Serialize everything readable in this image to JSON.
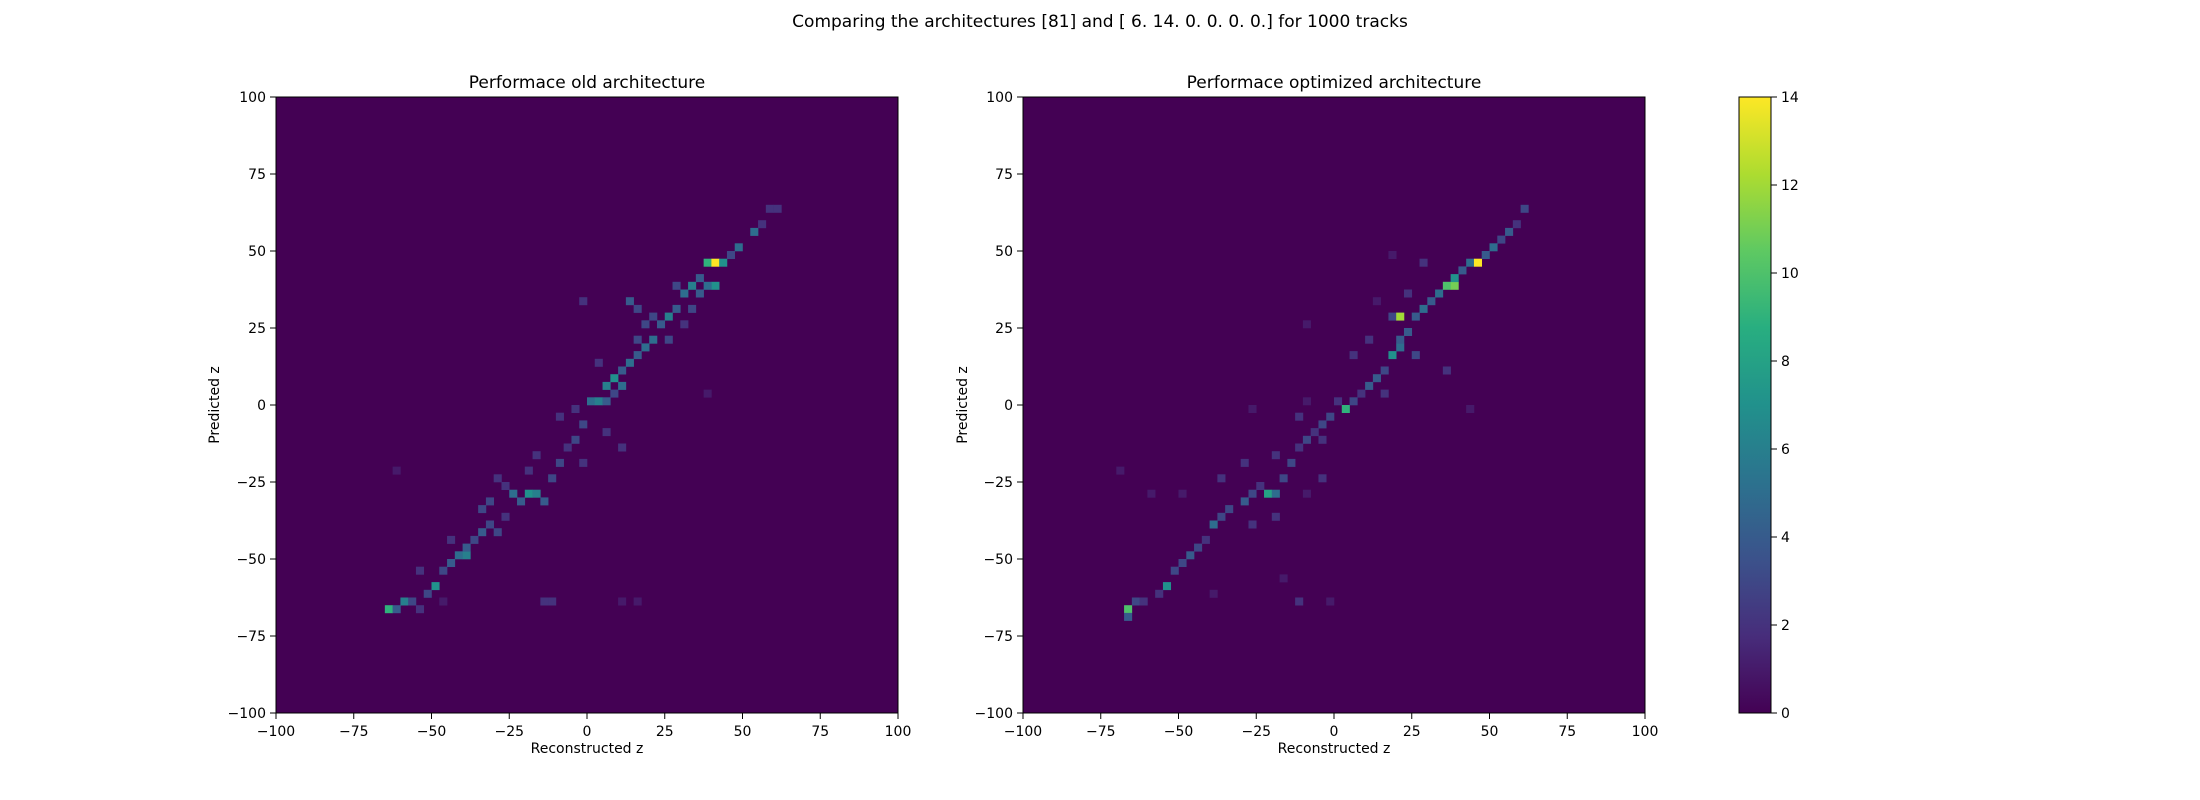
{
  "figure": {
    "suptitle": "Comparing the architectures [81] and [ 6. 14.  0.  0.  0.  0.] for 1000 tracks"
  },
  "chart_data": [
    {
      "type": "heatmap",
      "title": "Performace old architecture",
      "xlabel": "Reconstructed z",
      "ylabel": "Predicted z",
      "xlim": [
        -100,
        100
      ],
      "ylim": [
        -100,
        100
      ],
      "bin_width": 2.5,
      "xticks": [
        -100,
        -75,
        -50,
        -25,
        0,
        25,
        50,
        75,
        100
      ],
      "yticks": [
        -100,
        -75,
        -50,
        -25,
        0,
        25,
        50,
        75,
        100
      ],
      "xtick_labels": [
        "−100",
        "−75",
        "−50",
        "−25",
        "0",
        "25",
        "50",
        "75",
        "100"
      ],
      "ytick_labels": [
        "−100",
        "−75",
        "−50",
        "−25",
        "0",
        "25",
        "50",
        "75",
        "100"
      ],
      "grid": false,
      "cells": [
        {
          "x": -65,
          "y": -67.5,
          "count": 9
        },
        {
          "x": -62.5,
          "y": -67.5,
          "count": 4
        },
        {
          "x": -60,
          "y": -65,
          "count": 6
        },
        {
          "x": -57.5,
          "y": -65,
          "count": 3
        },
        {
          "x": -55,
          "y": -67.5,
          "count": 2
        },
        {
          "x": -50,
          "y": -60,
          "count": 7
        },
        {
          "x": -52.5,
          "y": -62.5,
          "count": 3
        },
        {
          "x": -47.5,
          "y": -55,
          "count": 3
        },
        {
          "x": -45,
          "y": -52.5,
          "count": 4
        },
        {
          "x": -42.5,
          "y": -50,
          "count": 5
        },
        {
          "x": -40,
          "y": -50,
          "count": 6
        },
        {
          "x": -40,
          "y": -47.5,
          "count": 4
        },
        {
          "x": -37.5,
          "y": -45,
          "count": 3
        },
        {
          "x": -35,
          "y": -42.5,
          "count": 4
        },
        {
          "x": -32.5,
          "y": -40,
          "count": 3
        },
        {
          "x": -30,
          "y": -42.5,
          "count": 3
        },
        {
          "x": -27.5,
          "y": -37.5,
          "count": 2
        },
        {
          "x": -25,
          "y": -30,
          "count": 5
        },
        {
          "x": -22.5,
          "y": -32.5,
          "count": 4
        },
        {
          "x": -20,
          "y": -30,
          "count": 7
        },
        {
          "x": -17.5,
          "y": -30,
          "count": 6
        },
        {
          "x": -15,
          "y": -32.5,
          "count": 4
        },
        {
          "x": -32.5,
          "y": -32.5,
          "count": 3
        },
        {
          "x": -35,
          "y": -35,
          "count": 3
        },
        {
          "x": -27.5,
          "y": -27.5,
          "count": 2
        },
        {
          "x": -12.5,
          "y": -25,
          "count": 3
        },
        {
          "x": -10,
          "y": -20,
          "count": 3
        },
        {
          "x": -7.5,
          "y": -15,
          "count": 2
        },
        {
          "x": -5,
          "y": -12.5,
          "count": 3
        },
        {
          "x": -2.5,
          "y": -7.5,
          "count": 3
        },
        {
          "x": -5,
          "y": -2.5,
          "count": 2
        },
        {
          "x": 0,
          "y": 0,
          "count": 5
        },
        {
          "x": 2.5,
          "y": 0,
          "count": 6
        },
        {
          "x": 5,
          "y": 0,
          "count": 4
        },
        {
          "x": 7.5,
          "y": 2.5,
          "count": 3
        },
        {
          "x": 5,
          "y": 5,
          "count": 6
        },
        {
          "x": 7.5,
          "y": 7.5,
          "count": 7
        },
        {
          "x": 10,
          "y": 5,
          "count": 5
        },
        {
          "x": 10,
          "y": 10,
          "count": 4
        },
        {
          "x": 12.5,
          "y": 12.5,
          "count": 5
        },
        {
          "x": 15,
          "y": 15,
          "count": 4
        },
        {
          "x": 17.5,
          "y": 17.5,
          "count": 5
        },
        {
          "x": 15,
          "y": 20,
          "count": 3
        },
        {
          "x": 20,
          "y": 20,
          "count": 5
        },
        {
          "x": 22.5,
          "y": 25,
          "count": 4
        },
        {
          "x": 20,
          "y": 27.5,
          "count": 3
        },
        {
          "x": 25,
          "y": 27.5,
          "count": 6
        },
        {
          "x": 27.5,
          "y": 30,
          "count": 4
        },
        {
          "x": 12.5,
          "y": 32.5,
          "count": 4
        },
        {
          "x": 15,
          "y": 30,
          "count": 3
        },
        {
          "x": 30,
          "y": 35,
          "count": 5
        },
        {
          "x": 32.5,
          "y": 37.5,
          "count": 6
        },
        {
          "x": 35,
          "y": 40,
          "count": 4
        },
        {
          "x": 37.5,
          "y": 45,
          "count": 9
        },
        {
          "x": 40,
          "y": 45,
          "count": 14
        },
        {
          "x": 42.5,
          "y": 45,
          "count": 7
        },
        {
          "x": 45,
          "y": 47.5,
          "count": 3
        },
        {
          "x": 40,
          "y": 37.5,
          "count": 7
        },
        {
          "x": 37.5,
          "y": 37.5,
          "count": 5
        },
        {
          "x": 47.5,
          "y": 50,
          "count": 5
        },
        {
          "x": 52.5,
          "y": 55,
          "count": 5
        },
        {
          "x": 55,
          "y": 57.5,
          "count": 2
        },
        {
          "x": 57.5,
          "y": 62.5,
          "count": 2
        },
        {
          "x": 60,
          "y": 62.5,
          "count": 2
        },
        {
          "x": -15,
          "y": -65,
          "count": 2
        },
        {
          "x": -12.5,
          "y": -65,
          "count": 2
        },
        {
          "x": 10,
          "y": -65,
          "count": 1
        },
        {
          "x": 15,
          "y": -65,
          "count": 1
        },
        {
          "x": 37.5,
          "y": 2.5,
          "count": 1
        },
        {
          "x": -62.5,
          "y": -22.5,
          "count": 1
        },
        {
          "x": -2.5,
          "y": 32.5,
          "count": 2
        },
        {
          "x": 25,
          "y": 20,
          "count": 3
        },
        {
          "x": 30,
          "y": 25,
          "count": 2
        },
        {
          "x": 32.5,
          "y": 30,
          "count": 3
        },
        {
          "x": -17.5,
          "y": -17.5,
          "count": 2
        },
        {
          "x": -20,
          "y": -22.5,
          "count": 2
        },
        {
          "x": -30,
          "y": -25,
          "count": 2
        },
        {
          "x": -10,
          "y": -5,
          "count": 2
        },
        {
          "x": 2.5,
          "y": 12.5,
          "count": 2
        },
        {
          "x": 17.5,
          "y": 25,
          "count": 3
        },
        {
          "x": 35,
          "y": 35,
          "count": 4
        },
        {
          "x": 27.5,
          "y": 37.5,
          "count": 3
        },
        {
          "x": -45,
          "y": -45,
          "count": 2
        },
        {
          "x": -55,
          "y": -55,
          "count": 2
        },
        {
          "x": -47.5,
          "y": -65,
          "count": 1
        },
        {
          "x": 10,
          "y": -15,
          "count": 2
        },
        {
          "x": 5,
          "y": -10,
          "count": 2
        },
        {
          "x": -2.5,
          "y": -20,
          "count": 2
        }
      ]
    },
    {
      "type": "heatmap",
      "title": "Performace optimized architecture",
      "xlabel": "Reconstructed z",
      "ylabel": "Predicted z",
      "xlim": [
        -100,
        100
      ],
      "ylim": [
        -100,
        100
      ],
      "bin_width": 2.5,
      "xticks": [
        -100,
        -75,
        -50,
        -25,
        0,
        25,
        50,
        75,
        100
      ],
      "yticks": [
        -100,
        -75,
        -50,
        -25,
        0,
        25,
        50,
        75,
        100
      ],
      "xtick_labels": [
        "−100",
        "−75",
        "−50",
        "−25",
        "0",
        "25",
        "50",
        "75",
        "100"
      ],
      "ytick_labels": [
        "−100",
        "−75",
        "−50",
        "−25",
        "0",
        "25",
        "50",
        "75",
        "100"
      ],
      "grid": false,
      "cells": [
        {
          "x": -67.5,
          "y": -67.5,
          "count": 10
        },
        {
          "x": -67.5,
          "y": -70,
          "count": 4
        },
        {
          "x": -65,
          "y": -65,
          "count": 3
        },
        {
          "x": -62.5,
          "y": -65,
          "count": 2
        },
        {
          "x": -55,
          "y": -60,
          "count": 7
        },
        {
          "x": -57.5,
          "y": -62.5,
          "count": 2
        },
        {
          "x": -52.5,
          "y": -55,
          "count": 3
        },
        {
          "x": -50,
          "y": -52.5,
          "count": 3
        },
        {
          "x": -47.5,
          "y": -50,
          "count": 4
        },
        {
          "x": -45,
          "y": -47.5,
          "count": 3
        },
        {
          "x": -42.5,
          "y": -45,
          "count": 2
        },
        {
          "x": -40,
          "y": -40,
          "count": 5
        },
        {
          "x": -37.5,
          "y": -37.5,
          "count": 3
        },
        {
          "x": -35,
          "y": -35,
          "count": 3
        },
        {
          "x": -30,
          "y": -32.5,
          "count": 4
        },
        {
          "x": -27.5,
          "y": -30,
          "count": 3
        },
        {
          "x": -25,
          "y": -27.5,
          "count": 2
        },
        {
          "x": -22.5,
          "y": -30,
          "count": 8
        },
        {
          "x": -20,
          "y": -30,
          "count": 5
        },
        {
          "x": -17.5,
          "y": -25,
          "count": 3
        },
        {
          "x": -15,
          "y": -20,
          "count": 3
        },
        {
          "x": -12.5,
          "y": -15,
          "count": 2
        },
        {
          "x": -10,
          "y": -12.5,
          "count": 3
        },
        {
          "x": -7.5,
          "y": -10,
          "count": 2
        },
        {
          "x": -5,
          "y": -7.5,
          "count": 3
        },
        {
          "x": -2.5,
          "y": -5,
          "count": 3
        },
        {
          "x": 0,
          "y": 0,
          "count": 2
        },
        {
          "x": 2.5,
          "y": -2.5,
          "count": 9
        },
        {
          "x": 5,
          "y": 0,
          "count": 3
        },
        {
          "x": 7.5,
          "y": 2.5,
          "count": 2
        },
        {
          "x": 10,
          "y": 5,
          "count": 4
        },
        {
          "x": 12.5,
          "y": 7.5,
          "count": 4
        },
        {
          "x": 15,
          "y": 10,
          "count": 3
        },
        {
          "x": 17.5,
          "y": 15,
          "count": 7
        },
        {
          "x": 20,
          "y": 17.5,
          "count": 5
        },
        {
          "x": 20,
          "y": 20,
          "count": 4
        },
        {
          "x": 22.5,
          "y": 22.5,
          "count": 4
        },
        {
          "x": 17.5,
          "y": 27.5,
          "count": 3
        },
        {
          "x": 20,
          "y": 27.5,
          "count": 12
        },
        {
          "x": 25,
          "y": 27.5,
          "count": 4
        },
        {
          "x": 27.5,
          "y": 30,
          "count": 5
        },
        {
          "x": 30,
          "y": 32.5,
          "count": 4
        },
        {
          "x": 32.5,
          "y": 35,
          "count": 5
        },
        {
          "x": 35,
          "y": 37.5,
          "count": 10
        },
        {
          "x": 37.5,
          "y": 37.5,
          "count": 11
        },
        {
          "x": 37.5,
          "y": 40,
          "count": 7
        },
        {
          "x": 40,
          "y": 42.5,
          "count": 4
        },
        {
          "x": 42.5,
          "y": 45,
          "count": 5
        },
        {
          "x": 45,
          "y": 45,
          "count": 14
        },
        {
          "x": 47.5,
          "y": 47.5,
          "count": 4
        },
        {
          "x": 50,
          "y": 50,
          "count": 5
        },
        {
          "x": 52.5,
          "y": 52.5,
          "count": 3
        },
        {
          "x": 55,
          "y": 55,
          "count": 4
        },
        {
          "x": 57.5,
          "y": 57.5,
          "count": 2
        },
        {
          "x": 60,
          "y": 62.5,
          "count": 3
        },
        {
          "x": -37.5,
          "y": -25,
          "count": 2
        },
        {
          "x": -30,
          "y": -20,
          "count": 2
        },
        {
          "x": -27.5,
          "y": -40,
          "count": 2
        },
        {
          "x": -20,
          "y": -37.5,
          "count": 2
        },
        {
          "x": -10,
          "y": -30,
          "count": 1
        },
        {
          "x": -5,
          "y": -25,
          "count": 2
        },
        {
          "x": -12.5,
          "y": -5,
          "count": 2
        },
        {
          "x": -10,
          "y": 0,
          "count": 1
        },
        {
          "x": -27.5,
          "y": -2.5,
          "count": 1
        },
        {
          "x": -10,
          "y": 25,
          "count": 1
        },
        {
          "x": 12.5,
          "y": 32.5,
          "count": 1
        },
        {
          "x": 17.5,
          "y": 47.5,
          "count": 1
        },
        {
          "x": 27.5,
          "y": 45,
          "count": 2
        },
        {
          "x": 42.5,
          "y": -2.5,
          "count": 1
        },
        {
          "x": -50,
          "y": -30,
          "count": 1
        },
        {
          "x": -70,
          "y": -22.5,
          "count": 1
        },
        {
          "x": -60,
          "y": -30,
          "count": 1
        },
        {
          "x": -17.5,
          "y": -57.5,
          "count": 1
        },
        {
          "x": -40,
          "y": -62.5,
          "count": 1
        },
        {
          "x": -12.5,
          "y": -65,
          "count": 2
        },
        {
          "x": -2.5,
          "y": -65,
          "count": 1
        },
        {
          "x": 35,
          "y": 10,
          "count": 2
        },
        {
          "x": 25,
          "y": 15,
          "count": 3
        },
        {
          "x": 22.5,
          "y": 35,
          "count": 2
        },
        {
          "x": 10,
          "y": 20,
          "count": 2
        },
        {
          "x": 5,
          "y": 15,
          "count": 2
        },
        {
          "x": -5,
          "y": -12.5,
          "count": 2
        },
        {
          "x": -20,
          "y": -17.5,
          "count": 2
        },
        {
          "x": 15,
          "y": 2.5,
          "count": 2
        }
      ]
    }
  ],
  "colorbar": {
    "colormap": "viridis",
    "min": 0,
    "max": 14,
    "ticks": [
      0,
      2,
      4,
      6,
      8,
      10,
      12,
      14
    ],
    "tick_labels": [
      "0",
      "2",
      "4",
      "6",
      "8",
      "10",
      "12",
      "14"
    ]
  }
}
